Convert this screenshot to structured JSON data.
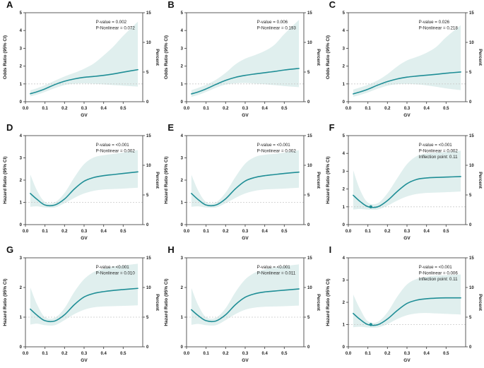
{
  "figure": {
    "colors": {
      "line": "#1f8e96",
      "band": "#cfe7e5",
      "ref_line": "#c9c9c9",
      "spine": "#4a4a4a",
      "text": "#1a1a1a"
    },
    "xlabel": "GV",
    "y2label": "Percent"
  },
  "chart_data": [
    {
      "panel": "A",
      "type": "line",
      "xlabel": "GV",
      "ylabel": "Odds Ratio (95% CI)",
      "y2label": "Percent",
      "xlim": [
        0,
        0.6
      ],
      "ylim": [
        0,
        5
      ],
      "y2lim": [
        0,
        15
      ],
      "xticks": [
        0,
        0.1,
        0.2,
        0.3,
        0.4,
        0.5
      ],
      "yticks": [
        0,
        1,
        2,
        3,
        4,
        5
      ],
      "y2ticks": [
        0,
        5,
        10,
        15
      ],
      "ref_y": 1,
      "annotations": [
        "P-value = 0.002",
        "P-Nonlinear = 0.072"
      ],
      "x": [
        0.025,
        0.06,
        0.1,
        0.15,
        0.2,
        0.25,
        0.3,
        0.35,
        0.4,
        0.45,
        0.5,
        0.575
      ],
      "y": [
        0.45,
        0.56,
        0.72,
        0.96,
        1.15,
        1.28,
        1.37,
        1.42,
        1.48,
        1.56,
        1.66,
        1.8
      ],
      "ci_lower": [
        0.3,
        0.4,
        0.55,
        0.76,
        0.93,
        1.01,
        1.03,
        1.01,
        0.97,
        0.93,
        0.9,
        0.85
      ],
      "ci_upper": [
        0.64,
        0.76,
        0.93,
        1.18,
        1.42,
        1.62,
        1.85,
        2.15,
        2.6,
        3.1,
        3.7,
        4.5
      ],
      "inflection_point": null
    },
    {
      "panel": "B",
      "type": "line",
      "xlabel": "GV",
      "ylabel": "Odds Ratio (95% CI)",
      "y2label": "Percent",
      "xlim": [
        0,
        0.6
      ],
      "ylim": [
        0,
        5
      ],
      "y2lim": [
        0,
        15
      ],
      "xticks": [
        0,
        0.1,
        0.2,
        0.3,
        0.4,
        0.5
      ],
      "yticks": [
        0,
        1,
        2,
        3,
        4,
        5
      ],
      "y2ticks": [
        0,
        5,
        10,
        15
      ],
      "ref_y": 1,
      "annotations": [
        "P-value = 0.006",
        "P-Nonlinear = 0.193"
      ],
      "x": [
        0.025,
        0.06,
        0.1,
        0.15,
        0.2,
        0.25,
        0.3,
        0.35,
        0.4,
        0.45,
        0.5,
        0.575
      ],
      "y": [
        0.44,
        0.55,
        0.72,
        0.97,
        1.2,
        1.37,
        1.48,
        1.56,
        1.63,
        1.7,
        1.78,
        1.87
      ],
      "ci_lower": [
        0.27,
        0.38,
        0.55,
        0.78,
        0.96,
        1.03,
        1.05,
        1.02,
        0.98,
        0.93,
        0.88,
        0.82
      ],
      "ci_upper": [
        0.65,
        0.78,
        0.95,
        1.23,
        1.62,
        2.1,
        2.42,
        2.62,
        2.85,
        3.2,
        3.8,
        4.6
      ],
      "inflection_point": null
    },
    {
      "panel": "C",
      "type": "line",
      "xlabel": "GV",
      "ylabel": "Odds Ratio (95% CI)",
      "y2label": "Percent",
      "xlim": [
        0,
        0.6
      ],
      "ylim": [
        0,
        5
      ],
      "y2lim": [
        0,
        15
      ],
      "xticks": [
        0,
        0.1,
        0.2,
        0.3,
        0.4,
        0.5
      ],
      "yticks": [
        0,
        1,
        2,
        3,
        4,
        5
      ],
      "y2ticks": [
        0,
        5,
        10,
        15
      ],
      "ref_y": 1,
      "annotations": [
        "P-value = 0.026",
        "P-Nonlinear = 0.218"
      ],
      "x": [
        0.025,
        0.06,
        0.1,
        0.15,
        0.2,
        0.25,
        0.3,
        0.35,
        0.4,
        0.45,
        0.5,
        0.575
      ],
      "y": [
        0.44,
        0.55,
        0.7,
        0.93,
        1.13,
        1.28,
        1.38,
        1.44,
        1.49,
        1.54,
        1.6,
        1.67
      ],
      "ci_lower": [
        0.28,
        0.38,
        0.52,
        0.73,
        0.9,
        0.98,
        1.0,
        0.97,
        0.92,
        0.84,
        0.75,
        0.65
      ],
      "ci_upper": [
        0.68,
        0.8,
        0.95,
        1.2,
        1.55,
        1.98,
        2.32,
        2.52,
        2.75,
        3.08,
        3.62,
        4.3
      ],
      "inflection_point": null
    },
    {
      "panel": "D",
      "type": "line",
      "xlabel": "GV",
      "ylabel": "Hazard Ratio (95% CI)",
      "y2label": "Percent",
      "xlim": [
        0,
        0.6
      ],
      "ylim": [
        0,
        4
      ],
      "y2lim": [
        0,
        15
      ],
      "xticks": [
        0,
        0.1,
        0.2,
        0.3,
        0.4,
        0.5
      ],
      "yticks": [
        0,
        1,
        2,
        3,
        4
      ],
      "y2ticks": [
        0,
        5,
        10,
        15
      ],
      "ref_y": 1,
      "annotations": [
        "P-value = <0.001",
        "P-Nonlinear = 0.002"
      ],
      "x": [
        0.025,
        0.06,
        0.1,
        0.15,
        0.2,
        0.25,
        0.3,
        0.35,
        0.4,
        0.45,
        0.5,
        0.575
      ],
      "y": [
        1.4,
        1.13,
        0.88,
        0.88,
        1.15,
        1.6,
        1.95,
        2.12,
        2.2,
        2.25,
        2.3,
        2.37
      ],
      "ci_lower": [
        0.8,
        0.82,
        0.77,
        0.77,
        0.96,
        1.2,
        1.4,
        1.52,
        1.58,
        1.6,
        1.62,
        1.66
      ],
      "ci_upper": [
        2.25,
        1.52,
        1.02,
        1.0,
        1.42,
        2.12,
        2.72,
        3.02,
        3.12,
        3.18,
        3.24,
        3.35
      ],
      "inflection_point": null
    },
    {
      "panel": "E",
      "type": "line",
      "xlabel": "GV",
      "ylabel": "Hazard Ratio (95% CI)",
      "y2label": "Percent",
      "xlim": [
        0,
        0.6
      ],
      "ylim": [
        0,
        4
      ],
      "y2lim": [
        0,
        15
      ],
      "xticks": [
        0,
        0.1,
        0.2,
        0.3,
        0.4,
        0.5
      ],
      "yticks": [
        0,
        1,
        2,
        3,
        4
      ],
      "y2ticks": [
        0,
        5,
        10,
        15
      ],
      "ref_y": 1,
      "annotations": [
        "P-value = <0.001",
        "P-Nonlinear = 0.002"
      ],
      "x": [
        0.025,
        0.06,
        0.1,
        0.15,
        0.2,
        0.25,
        0.3,
        0.35,
        0.4,
        0.45,
        0.5,
        0.575
      ],
      "y": [
        1.4,
        1.12,
        0.88,
        0.88,
        1.16,
        1.61,
        1.96,
        2.12,
        2.2,
        2.25,
        2.3,
        2.36
      ],
      "ci_lower": [
        0.8,
        0.82,
        0.77,
        0.77,
        0.96,
        1.2,
        1.4,
        1.52,
        1.58,
        1.6,
        1.62,
        1.66
      ],
      "ci_upper": [
        2.24,
        1.52,
        1.02,
        1.0,
        1.44,
        2.14,
        2.74,
        3.04,
        3.14,
        3.18,
        3.24,
        3.34
      ],
      "inflection_point": null
    },
    {
      "panel": "F",
      "type": "line",
      "xlabel": "GV",
      "ylabel": "Hazard Ratio (95% CI)",
      "y2label": "Percent",
      "xlim": [
        0,
        0.6
      ],
      "ylim": [
        0,
        5
      ],
      "y2lim": [
        0,
        15
      ],
      "xticks": [
        0,
        0.1,
        0.2,
        0.3,
        0.4,
        0.5
      ],
      "yticks": [
        0,
        1,
        2,
        3,
        4,
        5
      ],
      "y2ticks": [
        0,
        5,
        10,
        15
      ],
      "ref_y": 1,
      "annotations": [
        "P-value = <0.001",
        "P-Nonlinear = 0.002",
        "Inflection point: 0.11"
      ],
      "x": [
        0.025,
        0.06,
        0.1,
        0.15,
        0.2,
        0.25,
        0.3,
        0.35,
        0.4,
        0.45,
        0.5,
        0.575
      ],
      "y": [
        1.65,
        1.3,
        1.01,
        1.0,
        1.35,
        1.86,
        2.3,
        2.54,
        2.62,
        2.65,
        2.67,
        2.7
      ],
      "ci_lower": [
        0.85,
        0.88,
        0.85,
        0.85,
        1.06,
        1.35,
        1.58,
        1.72,
        1.78,
        1.8,
        1.82,
        1.86
      ],
      "ci_upper": [
        3.05,
        1.95,
        1.24,
        1.2,
        1.76,
        2.6,
        3.4,
        3.85,
        4.0,
        4.04,
        4.08,
        4.15
      ],
      "inflection_point": {
        "x": 0.115,
        "y": 1.0
      }
    },
    {
      "panel": "G",
      "type": "line",
      "xlabel": "GV",
      "ylabel": "Hazard Ratio (95% CI)",
      "y2label": "Percent",
      "xlim": [
        0,
        0.6
      ],
      "ylim": [
        0,
        3
      ],
      "y2lim": [
        0,
        15
      ],
      "xticks": [
        0,
        0.1,
        0.2,
        0.3,
        0.4,
        0.5
      ],
      "yticks": [
        0,
        1,
        2,
        3
      ],
      "y2ticks": [
        0,
        5,
        10,
        15
      ],
      "ref_y": 1,
      "annotations": [
        "P-value = <0.001",
        "P-Nonlinear = 0.010"
      ],
      "x": [
        0.025,
        0.06,
        0.1,
        0.15,
        0.2,
        0.25,
        0.3,
        0.35,
        0.4,
        0.45,
        0.5,
        0.575
      ],
      "y": [
        1.27,
        1.06,
        0.88,
        0.87,
        1.08,
        1.42,
        1.68,
        1.8,
        1.86,
        1.9,
        1.93,
        1.97
      ],
      "ci_lower": [
        0.75,
        0.78,
        0.73,
        0.73,
        0.9,
        1.1,
        1.25,
        1.33,
        1.36,
        1.37,
        1.38,
        1.4
      ],
      "ci_upper": [
        2.0,
        1.42,
        1.0,
        0.98,
        1.3,
        1.85,
        2.28,
        2.52,
        2.63,
        2.7,
        2.74,
        2.8
      ],
      "inflection_point": null
    },
    {
      "panel": "H",
      "type": "line",
      "xlabel": "GV",
      "ylabel": "Hazard Ratio (95% CI)",
      "y2label": "Percent",
      "xlim": [
        0,
        0.6
      ],
      "ylim": [
        0,
        3
      ],
      "y2lim": [
        0,
        15
      ],
      "xticks": [
        0,
        0.1,
        0.2,
        0.3,
        0.4,
        0.5
      ],
      "yticks": [
        0,
        1,
        2,
        3
      ],
      "y2ticks": [
        0,
        5,
        10,
        15
      ],
      "ref_y": 1,
      "annotations": [
        "P-value = <0.001",
        "P-Nonlinear = 0.011"
      ],
      "x": [
        0.025,
        0.06,
        0.1,
        0.15,
        0.2,
        0.25,
        0.3,
        0.35,
        0.4,
        0.45,
        0.5,
        0.575
      ],
      "y": [
        1.25,
        1.05,
        0.88,
        0.87,
        1.08,
        1.42,
        1.67,
        1.79,
        1.85,
        1.88,
        1.91,
        1.95
      ],
      "ci_lower": [
        0.74,
        0.77,
        0.73,
        0.73,
        0.9,
        1.1,
        1.25,
        1.32,
        1.35,
        1.36,
        1.37,
        1.39
      ],
      "ci_upper": [
        1.98,
        1.4,
        1.0,
        0.98,
        1.3,
        1.84,
        2.27,
        2.5,
        2.61,
        2.68,
        2.72,
        2.78
      ],
      "inflection_point": null
    },
    {
      "panel": "I",
      "type": "line",
      "xlabel": "GV",
      "ylabel": "Hazard Ratio (95% CI)",
      "y2label": "Percent",
      "xlim": [
        0,
        0.6
      ],
      "ylim": [
        0,
        4
      ],
      "y2lim": [
        0,
        15
      ],
      "xticks": [
        0,
        0.1,
        0.2,
        0.3,
        0.4,
        0.5
      ],
      "yticks": [
        0,
        1,
        2,
        3,
        4
      ],
      "y2ticks": [
        0,
        5,
        10,
        15
      ],
      "ref_y": 1,
      "annotations": [
        "P-value = <0.001",
        "P-Nonlinear = 0.006",
        "Inflection point: 0.11"
      ],
      "x": [
        0.025,
        0.06,
        0.1,
        0.15,
        0.2,
        0.25,
        0.3,
        0.35,
        0.4,
        0.45,
        0.5,
        0.575
      ],
      "y": [
        1.5,
        1.23,
        1.0,
        0.99,
        1.25,
        1.63,
        1.95,
        2.1,
        2.16,
        2.19,
        2.2,
        2.2
      ],
      "ci_lower": [
        0.88,
        0.9,
        0.87,
        0.87,
        1.02,
        1.25,
        1.42,
        1.5,
        1.52,
        1.5,
        1.48,
        1.45
      ],
      "ci_upper": [
        2.35,
        1.7,
        1.15,
        1.12,
        1.55,
        2.25,
        2.8,
        3.05,
        3.15,
        3.2,
        3.22,
        3.25
      ],
      "inflection_point": {
        "x": 0.115,
        "y": 1.0
      }
    }
  ]
}
